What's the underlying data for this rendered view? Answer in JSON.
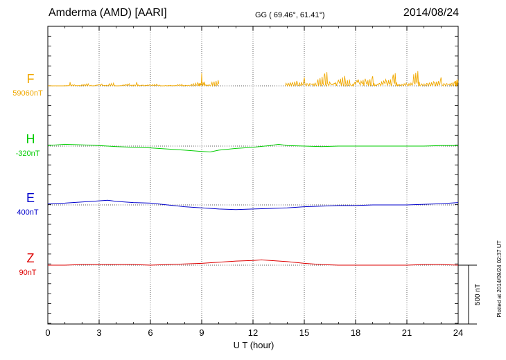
{
  "header": {
    "station": "Amderma (AMD)  [AARI]",
    "coords": "GG ( 69.46°,  61.41°)",
    "date": "2014/08/24"
  },
  "footer": {
    "plotted": "Plotted at 2014/09/24 02:37 UT"
  },
  "chart_data": {
    "type": "line",
    "xlabel": "U T (hour)",
    "xlim": [
      0,
      24
    ],
    "x_ticks": [
      "0",
      "3",
      "6",
      "9",
      "12",
      "15",
      "18",
      "21",
      "24"
    ],
    "grid": true,
    "scale_bar": {
      "label": "500 nT",
      "value": 500
    },
    "channels": [
      {
        "name": "F",
        "baseline_label": "59060nT",
        "color": "#f0a800",
        "baseline": 59060,
        "x": [
          0,
          0.5,
          1,
          1.3,
          1.6,
          2,
          2.4,
          2.8,
          3.2,
          3.6,
          4,
          4.4,
          4.8,
          5.2,
          5.6,
          6,
          6.4,
          6.8,
          7.2,
          7.6,
          8,
          8.4,
          8.8,
          9.0,
          9.2,
          9.6,
          10.0,
          13.9,
          14.2,
          14.6,
          15,
          15.4,
          15.8,
          16.2,
          16.6,
          17,
          17.4,
          17.8,
          18.2,
          18.6,
          19,
          19.4,
          19.8,
          20.2,
          20.6,
          21,
          21.4,
          21.8,
          22.2,
          22.6,
          23,
          23.4,
          23.8,
          24
        ],
        "y": [
          2,
          1,
          4,
          35,
          8,
          22,
          6,
          40,
          10,
          25,
          8,
          30,
          12,
          35,
          20,
          18,
          8,
          10,
          6,
          15,
          20,
          45,
          30,
          120,
          25,
          60,
          55,
          90,
          70,
          40,
          80,
          60,
          110,
          130,
          90,
          120,
          60,
          180,
          100,
          70,
          90,
          110,
          80,
          120,
          60,
          40,
          140,
          70,
          60,
          50,
          80,
          60,
          70,
          90
        ]
      },
      {
        "name": "H",
        "baseline_label": "-320nT",
        "color": "#00cc00",
        "baseline": -320,
        "x": [
          0,
          1,
          2,
          3,
          4,
          5,
          6,
          7,
          8,
          9,
          9.5,
          10,
          11,
          12,
          13,
          13.5,
          14,
          15,
          16,
          17,
          18,
          19,
          20,
          21,
          22,
          23,
          24
        ],
        "y": [
          5,
          15,
          10,
          5,
          -5,
          -10,
          -15,
          -25,
          -35,
          -45,
          -50,
          -35,
          -20,
          -10,
          5,
          15,
          5,
          0,
          -5,
          0,
          0,
          0,
          0,
          0,
          0,
          5,
          5
        ]
      },
      {
        "name": "E",
        "baseline_label": "400nT",
        "color": "#0000cc",
        "baseline": 400,
        "x": [
          0,
          1,
          2,
          3,
          3.5,
          4,
          5,
          6,
          7,
          8,
          9,
          10,
          11,
          12,
          13,
          14,
          15,
          16,
          17,
          18,
          19,
          20,
          21,
          22,
          23,
          24
        ],
        "y": [
          10,
          15,
          25,
          35,
          40,
          30,
          20,
          15,
          0,
          -15,
          -25,
          -35,
          -40,
          -35,
          -30,
          -25,
          -15,
          -10,
          -5,
          -5,
          0,
          0,
          0,
          5,
          10,
          20
        ]
      },
      {
        "name": "Z",
        "baseline_label": "90nT",
        "color": "#dd0000",
        "baseline": 90,
        "x": [
          0,
          1,
          2,
          3,
          4,
          5,
          6,
          7,
          8,
          9,
          10,
          11,
          12,
          12.5,
          13,
          14,
          15,
          16,
          17,
          18,
          19,
          20,
          21,
          22,
          23,
          24
        ],
        "y": [
          0,
          0,
          5,
          5,
          5,
          5,
          0,
          5,
          10,
          15,
          25,
          35,
          40,
          45,
          40,
          30,
          15,
          5,
          0,
          0,
          0,
          0,
          0,
          5,
          5,
          0
        ]
      }
    ]
  }
}
